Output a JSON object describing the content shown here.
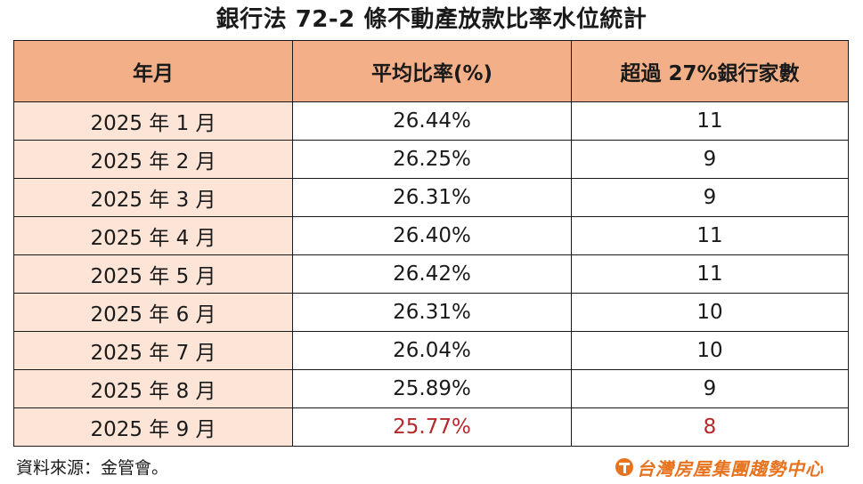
{
  "title": "銀行法 72-2 條不動產放款比率水位統計",
  "table": {
    "headers": [
      "年月",
      "平均比率(%)",
      "超過 27%銀行家數"
    ],
    "rows": [
      {
        "month": "2025 年 1 月",
        "ratio": "26.44%",
        "banks": "11"
      },
      {
        "month": "2025 年 2 月",
        "ratio": "26.25%",
        "banks": "9"
      },
      {
        "month": "2025 年 3 月",
        "ratio": "26.31%",
        "banks": "9"
      },
      {
        "month": "2025 年 4 月",
        "ratio": "26.40%",
        "banks": "11"
      },
      {
        "month": "2025 年 5 月",
        "ratio": "26.42%",
        "banks": "11"
      },
      {
        "month": "2025 年 6 月",
        "ratio": "26.31%",
        "banks": "10"
      },
      {
        "month": "2025 年 7 月",
        "ratio": "26.04%",
        "banks": "10"
      },
      {
        "month": "2025 年 8 月",
        "ratio": "25.89%",
        "banks": "9"
      },
      {
        "month": "2025 年 9 月",
        "ratio": "25.77%",
        "banks": "8"
      }
    ],
    "highlight_row_index": 8
  },
  "footer": {
    "source": "資料來源：金管會。",
    "logo_text": "台灣房屋集團趨勢中心",
    "logo_icon": "t-circle-logo-icon"
  },
  "colors": {
    "header_bg": "#f3b088",
    "month_col_bg": "#fce4d6",
    "highlight_text": "#b5282b",
    "logo_orange": "#e8731f"
  }
}
